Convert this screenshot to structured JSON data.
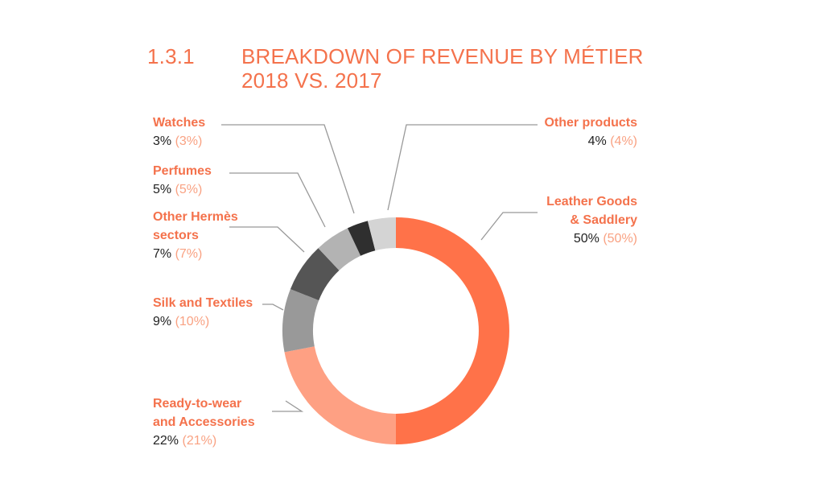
{
  "heading": {
    "number": "1.3.1",
    "title_line1": "BREAKDOWN OF REVENUE BY MÉTIER",
    "title_line2": "2018 VS. 2017"
  },
  "colors": {
    "accent": "#f4724c",
    "accent_light": "#f9a283",
    "dark_text": "#222222"
  },
  "chart_data": {
    "type": "pie",
    "style": "donut",
    "series": [
      {
        "name": "2018",
        "values": [
          50,
          22,
          9,
          7,
          5,
          3,
          4
        ]
      },
      {
        "name": "2017",
        "values": [
          50,
          21,
          10,
          7,
          5,
          3,
          4
        ]
      }
    ],
    "slices": [
      {
        "name_lines": [
          "Leather Goods",
          "& Saddlery"
        ],
        "value": 50,
        "value_text": "50%",
        "prev_value": 50,
        "prev_text": "(50%)",
        "color": "#ff7249"
      },
      {
        "name_lines": [
          "Ready-to-wear",
          "and Accessories"
        ],
        "value": 22,
        "value_text": "22%",
        "prev_value": 21,
        "prev_text": "(21%)",
        "color": "#fea083"
      },
      {
        "name_lines": [
          "Silk and Textiles"
        ],
        "value": 9,
        "value_text": "9%",
        "prev_value": 10,
        "prev_text": "(10%)",
        "color": "#999999"
      },
      {
        "name_lines": [
          "Other Hermès",
          "sectors"
        ],
        "value": 7,
        "value_text": "7%",
        "prev_value": 7,
        "prev_text": "(7%)",
        "color": "#555555"
      },
      {
        "name_lines": [
          "Perfumes"
        ],
        "value": 5,
        "value_text": "5%",
        "prev_value": 5,
        "prev_text": "(5%)",
        "color": "#b3b3b3"
      },
      {
        "name_lines": [
          "Watches"
        ],
        "value": 3,
        "value_text": "3%",
        "prev_value": 3,
        "prev_text": "(3%)",
        "color": "#2f2f2f"
      },
      {
        "name_lines": [
          "Other products"
        ],
        "value": 4,
        "value_text": "4%",
        "prev_value": 4,
        "prev_text": "(4%)",
        "color": "#d4d4d4"
      }
    ]
  }
}
